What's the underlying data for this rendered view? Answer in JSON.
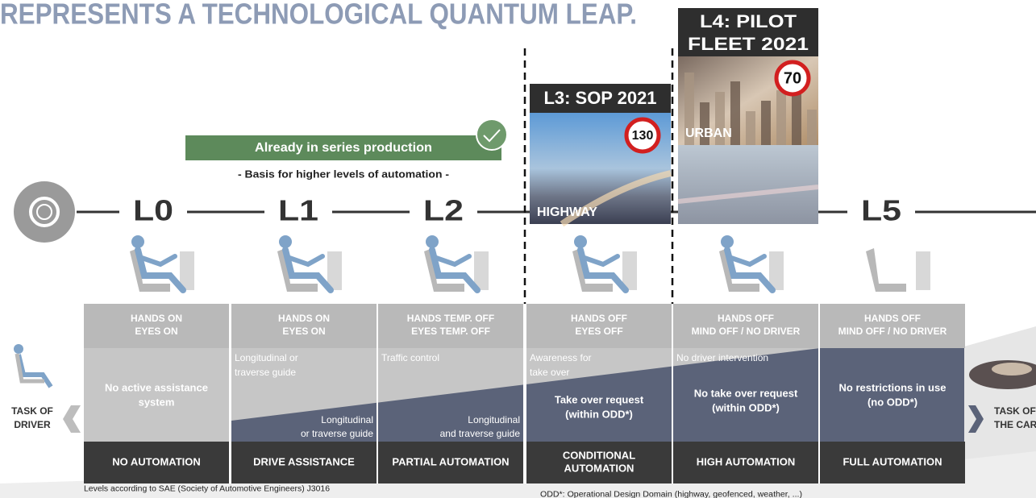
{
  "title": "REPRESENTS A TECHNOLOGICAL QUANTUM LEAP.",
  "banner": {
    "label": "Already in series production",
    "sublabel": "- Basis for higher levels of automation -"
  },
  "timeline": [
    "L0",
    "L1",
    "L2",
    "L5"
  ],
  "callouts": [
    {
      "title_lines": [
        "L3: SOP 2021"
      ],
      "speed": "130",
      "road": "HIGHWAY"
    },
    {
      "title_lines": [
        "L4: PILOT",
        "FLEET 2021"
      ],
      "speed": "70",
      "road": "URBAN"
    }
  ],
  "columns": [
    {
      "header": [
        "HANDS ON",
        "EYES ON"
      ],
      "main": [
        "No active assistance",
        "system"
      ],
      "footer": [
        "NO AUTOMATION"
      ]
    },
    {
      "header": [
        "HANDS ON",
        "EYES ON"
      ],
      "note": [
        "Longitudinal or",
        "traverse guide"
      ],
      "guide": [
        "Longitudinal",
        "or traverse guide"
      ],
      "footer": [
        "DRIVE ASSISTANCE"
      ]
    },
    {
      "header": [
        "HANDS TEMP. OFF",
        "EYES TEMP. OFF"
      ],
      "note": [
        "Traffic control"
      ],
      "guide": [
        "Longitudinal",
        "and traverse guide"
      ],
      "footer": [
        "PARTIAL AUTOMATION"
      ]
    },
    {
      "header": [
        "HANDS OFF",
        "EYES OFF"
      ],
      "note": [
        "Awareness for",
        "take over"
      ],
      "main": [
        "Take over request",
        "(within ODD*)"
      ],
      "footer": [
        "CONDITIONAL",
        "AUTOMATION"
      ]
    },
    {
      "header": [
        "HANDS OFF",
        "MIND OFF / NO DRIVER"
      ],
      "note": [
        "No driver intervention"
      ],
      "main": [
        "No take over request",
        "(within ODD*)"
      ],
      "footer": [
        "HIGH AUTOMATION"
      ]
    },
    {
      "header": [
        "HANDS OFF",
        "MIND OFF / NO DRIVER"
      ],
      "main": [
        "No restrictions in use",
        "(no ODD*)"
      ],
      "footer": [
        "FULL AUTOMATION"
      ]
    }
  ],
  "left_label": [
    "TASK OF",
    "DRIVER"
  ],
  "right_label": [
    "TASK OF",
    "THE CAR"
  ],
  "footnotes": [
    "Levels according to SAE (Society of Automotive Engineers) J3016",
    "ODD*: Operational Design Domain (highway, geofenced, weather, ...)"
  ]
}
